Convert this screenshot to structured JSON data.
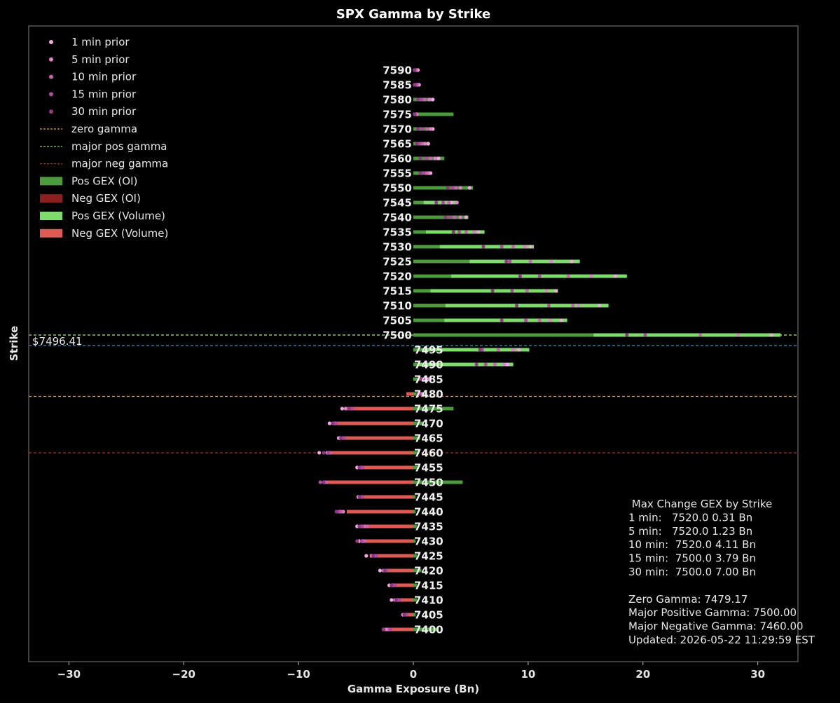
{
  "chart_data": {
    "type": "bar",
    "orientation": "horizontal",
    "title": "SPX Gamma by Strike",
    "xlabel": "Gamma Exposure (Bn)",
    "ylabel": "Strike",
    "xlim": [
      -33.5,
      33.5
    ],
    "xticks": [
      -30,
      -20,
      -10,
      0,
      10,
      20,
      30
    ],
    "xtick_labels": [
      "−30",
      "−20",
      "−10",
      "0",
      "10",
      "20",
      "30"
    ],
    "spot_label": "$7496.41",
    "spot": 7496.41,
    "strikes": [
      7590,
      7585,
      7580,
      7575,
      7570,
      7565,
      7560,
      7555,
      7550,
      7545,
      7540,
      7535,
      7530,
      7525,
      7520,
      7515,
      7510,
      7505,
      7500,
      7495,
      7490,
      7485,
      7480,
      7475,
      7470,
      7465,
      7460,
      7455,
      7450,
      7445,
      7440,
      7435,
      7430,
      7425,
      7420,
      7415,
      7410,
      7405,
      7400
    ],
    "pos_gex_oi": [
      0.5,
      0.4,
      1.7,
      3.5,
      1.8,
      1.4,
      2.7,
      1.5,
      5.2,
      0.9,
      4.8,
      1.1,
      2.3,
      4.9,
      3.3,
      1.5,
      2.8,
      2.7,
      15.7,
      0.8,
      0.5,
      0.6,
      1.0,
      3.5,
      0.9,
      0.6,
      0.4,
      0.4,
      4.3,
      0.2,
      0.2,
      0.3,
      0.2,
      0.3,
      0.7,
      0.3,
      0.3,
      0.2,
      2.2
    ],
    "neg_gex_oi": [
      0,
      0,
      0,
      0,
      0,
      0,
      0,
      0,
      0,
      0,
      0,
      0,
      0,
      0,
      0,
      0,
      0,
      0,
      0,
      0,
      0,
      0,
      0,
      0,
      0,
      0,
      0,
      0,
      0,
      0,
      0,
      0,
      0,
      0,
      0,
      0,
      0,
      0,
      0
    ],
    "pos_gex_volume": [
      0,
      0,
      0,
      0,
      0,
      0,
      0,
      0,
      4.0,
      3.8,
      4.5,
      6.2,
      10.5,
      14.5,
      18.6,
      12.6,
      17.0,
      13.4,
      32.0,
      10.1,
      8.7,
      1.5,
      0,
      0,
      0,
      0,
      0,
      0,
      0,
      0,
      0,
      0,
      0,
      0,
      0,
      0,
      0,
      0,
      0
    ],
    "neg_gex_volume": [
      0,
      0,
      0,
      0,
      0,
      0,
      0,
      0,
      0,
      0,
      0,
      0,
      0,
      0,
      0,
      0,
      0,
      0,
      0,
      0,
      0,
      0,
      -0.6,
      -5.8,
      -7.0,
      -6.5,
      -7.6,
      -4.7,
      -7.5,
      -4.3,
      -5.8,
      -4.7,
      -4.5,
      -3.8,
      -2.6,
      -1.9,
      -1.5,
      -0.8,
      -2.5
    ],
    "prior_series": [
      {
        "name": "1 min prior",
        "color": "#f2a9de",
        "values": [
          0.4,
          0.5,
          1.7,
          0.3,
          1.7,
          1.3,
          2.2,
          1.5,
          4.9,
          3.3,
          4.6,
          5.7,
          10.2,
          13.8,
          17.6,
          12.4,
          16.2,
          12.9,
          31.2,
          9.2,
          8.2,
          1.4,
          0.8,
          -6.2,
          -7.3,
          -6.5,
          -8.2,
          -4.9,
          -7.8,
          -4.8,
          -6.4,
          -4.9,
          -4.7,
          -4.1,
          -2.9,
          -2.1,
          -1.9,
          -0.9,
          -2.6
        ]
      },
      {
        "name": "5 min prior",
        "color": "#e07fcb",
        "values": [
          0.3,
          0.4,
          1.4,
          0.3,
          1.5,
          1.0,
          1.9,
          1.3,
          4.1,
          3.8,
          4.1,
          5.3,
          9.7,
          12.0,
          15.5,
          11.6,
          14.4,
          11.9,
          28.3,
          8.7,
          7.9,
          1.2,
          0.7,
          -5.9,
          -7.0,
          -6.4,
          -7.5,
          -4.7,
          -7.7,
          -4.7,
          -6.1,
          -4.3,
          -4.4,
          -3.6,
          -2.6,
          -1.8,
          -1.6,
          -0.8,
          -2.3
        ]
      },
      {
        "name": "10 min prior",
        "color": "#c964b4",
        "values": [
          0.2,
          0.3,
          1.0,
          0.2,
          1.2,
          0.7,
          1.5,
          1.1,
          3.7,
          3.1,
          3.6,
          4.6,
          8.7,
          10.2,
          13.5,
          9.9,
          13.9,
          11.0,
          25.0,
          7.4,
          7.1,
          1.0,
          0.6,
          -5.6,
          -6.8,
          -6.2,
          -7.3,
          -4.5,
          -7.6,
          -4.5,
          -6.3,
          -4.0,
          -4.2,
          -3.3,
          -2.5,
          -1.7,
          -1.3,
          -0.7,
          -2.1
        ]
      },
      {
        "name": "15 min prior",
        "color": "#b04c9f",
        "values": [
          0.1,
          0.2,
          0.7,
          0.1,
          0.8,
          0.5,
          1.1,
          0.9,
          3.4,
          2.6,
          3.2,
          4.0,
          7.7,
          8.4,
          11.0,
          8.6,
          11.8,
          9.8,
          20.2,
          6.0,
          6.3,
          0.8,
          0.5,
          -5.3,
          -6.7,
          -6.0,
          -7.4,
          -4.4,
          -8.1,
          -4.4,
          -6.5,
          -4.4,
          -4.5,
          -3.2,
          -2.3,
          -1.6,
          -1.2,
          -0.6,
          -2.0
        ]
      },
      {
        "name": "30 min prior",
        "color": "#8f3a82",
        "values": [
          0.1,
          0.1,
          0.4,
          0.1,
          0.4,
          0.3,
          0.6,
          0.6,
          3.0,
          2.0,
          2.8,
          3.5,
          6.1,
          8.1,
          9.3,
          6.9,
          9.0,
          7.7,
          18.6,
          5.8,
          5.5,
          0.6,
          0.4,
          -5.6,
          -7.0,
          -6.3,
          -7.8,
          -4.7,
          -7.8,
          -4.7,
          -6.7,
          -4.7,
          -4.9,
          -3.5,
          -2.5,
          -1.9,
          -1.5,
          -0.8,
          -2.6
        ]
      }
    ],
    "lines": {
      "zero_gamma": 7479.17,
      "major_pos_gamma": 7500,
      "major_neg_gamma": 7460
    },
    "highlight_strikes": [
      7520,
      7500
    ],
    "legend_placement": "top-left",
    "grid": false
  },
  "legend": [
    {
      "label": "1 min prior",
      "kind": "dot",
      "color": "#f2a9de"
    },
    {
      "label": "5 min prior",
      "kind": "dot",
      "color": "#e07fcb"
    },
    {
      "label": "10 min prior",
      "kind": "dot",
      "color": "#c964b4"
    },
    {
      "label": "15 min prior",
      "kind": "dot",
      "color": "#b04c9f"
    },
    {
      "label": "30 min prior",
      "kind": "dot",
      "color": "#8f3a82"
    },
    {
      "label": "zero gamma",
      "kind": "dash",
      "color": "#e8a05a"
    },
    {
      "label": "major pos gamma",
      "kind": "dash",
      "color": "#b6e86a"
    },
    {
      "label": "major neg gamma",
      "kind": "dash",
      "color": "#b02a2a"
    },
    {
      "label": "Pos GEX (OI)",
      "kind": "patch",
      "color": "#4e9a3e"
    },
    {
      "label": "Neg GEX (OI)",
      "kind": "patch",
      "color": "#8b2020"
    },
    {
      "label": "Pos GEX (Volume)",
      "kind": "patch",
      "color": "#7ddc6c"
    },
    {
      "label": "Neg GEX (Volume)",
      "kind": "patch",
      "color": "#e05a55"
    }
  ],
  "info_box": {
    "lines": [
      " Max Change GEX by Strike",
      "1 min:   7520.0 0.31 Bn",
      "5 min:   7520.0 1.23 Bn",
      "10 min:  7520.0 4.11 Bn",
      "15 min:  7500.0 3.79 Bn",
      "30 min:  7500.0 7.00 Bn",
      "",
      "Zero Gamma: 7479.17",
      "Major Positive Gamma: 7500.00",
      "Major Negative Gamma: 7460.00",
      "Updated: 2026-05-22 11:29:59 EST"
    ]
  },
  "colors": {
    "background": "#000000",
    "frame": "#555555",
    "spot_line": "#3ba7c9",
    "highlight_strike": "#2e9a2e",
    "pos_oi": "#4e9a3e",
    "pos_volume": "#7ddc6c",
    "neg_volume": "#e05a55"
  }
}
